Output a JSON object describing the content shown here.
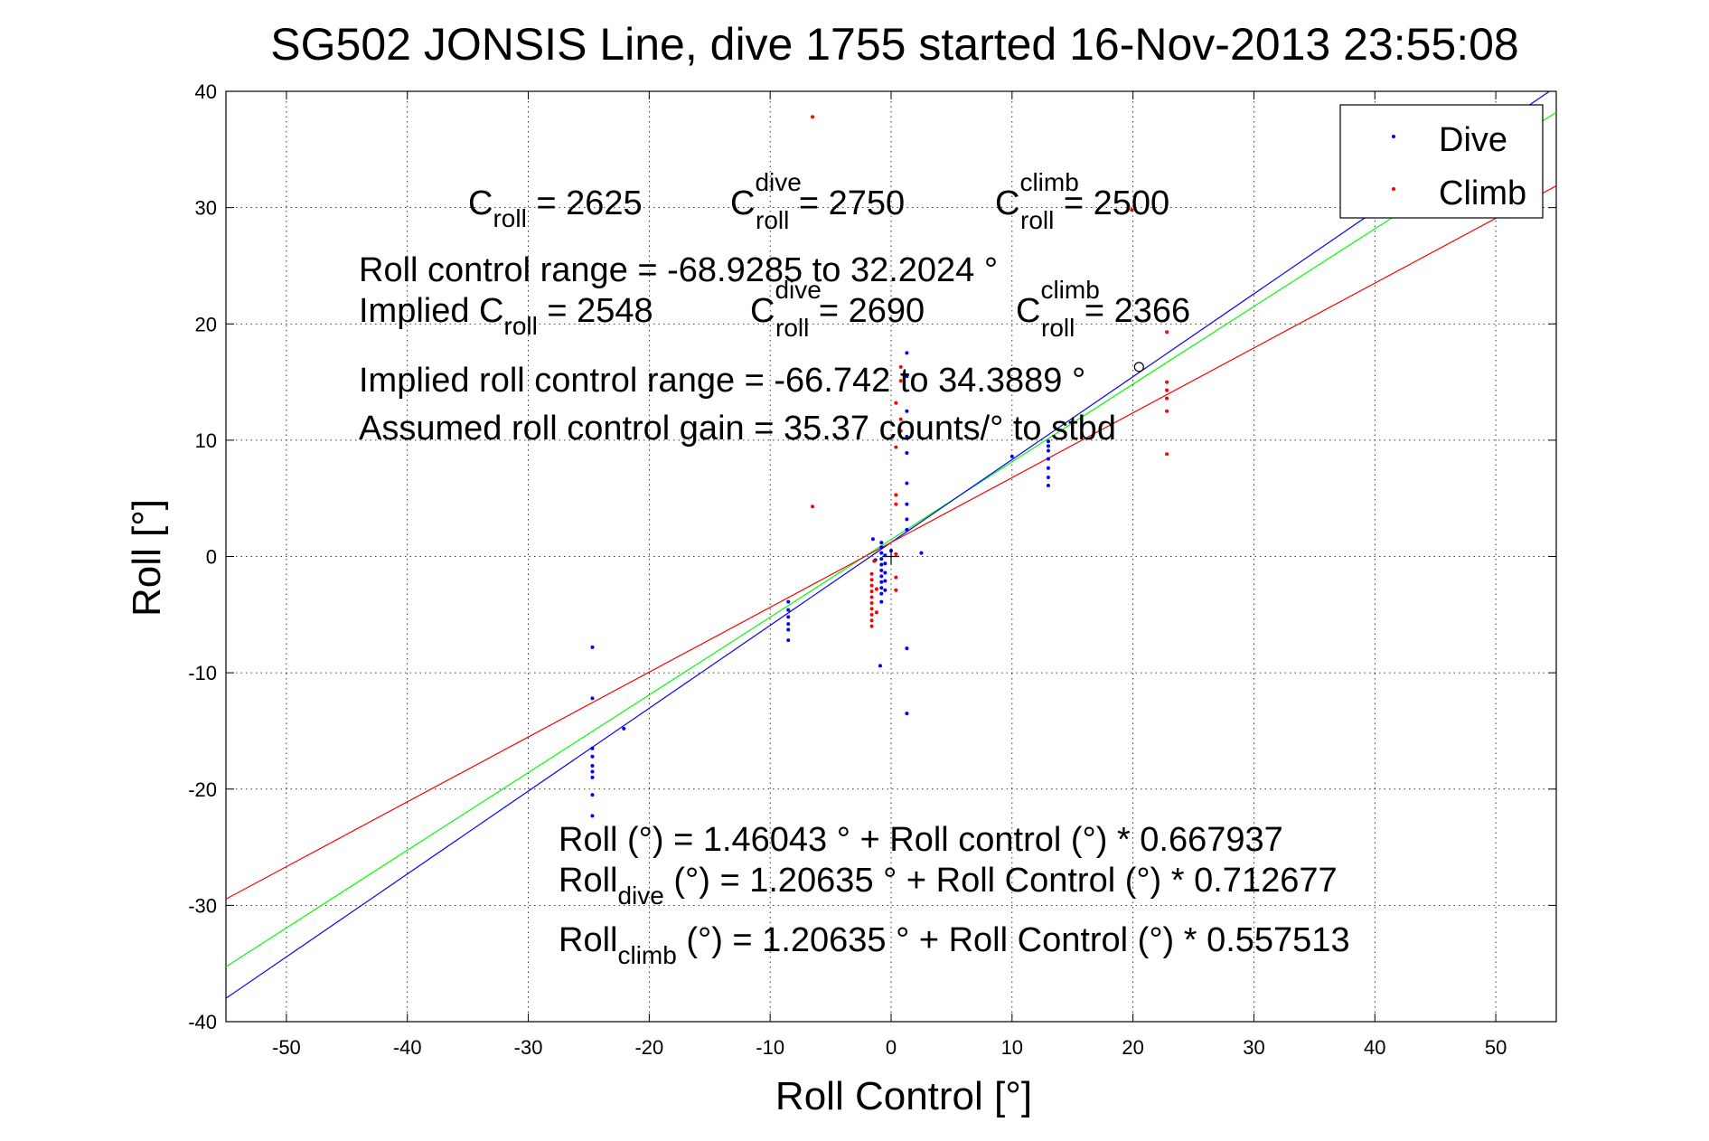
{
  "chart_data": {
    "type": "scatter",
    "title": "SG502 JONSIS Line, dive 1755 started 16-Nov-2013 23:55:08",
    "xlabel": "Roll Control [°]",
    "ylabel": "Roll [°]",
    "xlim": [
      -55,
      55
    ],
    "ylim": [
      -40,
      40
    ],
    "xticks": [
      -50,
      -40,
      -30,
      -20,
      -10,
      0,
      10,
      20,
      30,
      40,
      50
    ],
    "yticks": [
      -40,
      -30,
      -20,
      -10,
      0,
      10,
      20,
      30,
      40
    ],
    "grid": true,
    "legend_position": "top-right",
    "series": [
      {
        "name": "Dive",
        "color": "#0000ff",
        "points": [
          [
            -24.7,
            -7.8
          ],
          [
            -24.7,
            -12.2
          ],
          [
            -24.7,
            -16.5
          ],
          [
            -24.7,
            -17.2
          ],
          [
            -24.7,
            -18.0
          ],
          [
            -24.7,
            -18.5
          ],
          [
            -24.7,
            -19.0
          ],
          [
            -24.7,
            -20.5
          ],
          [
            -24.7,
            -22.3
          ],
          [
            -22.1,
            -14.8
          ],
          [
            -8.5,
            -3.9
          ],
          [
            -8.5,
            -4.6
          ],
          [
            -8.5,
            -5.2
          ],
          [
            -8.5,
            -5.8
          ],
          [
            -8.5,
            -6.3
          ],
          [
            -8.5,
            -7.2
          ],
          [
            -1.5,
            1.5
          ],
          [
            -1.3,
            -0.3
          ],
          [
            -0.8,
            1.2
          ],
          [
            -0.8,
            0.8
          ],
          [
            -0.8,
            0.3
          ],
          [
            -0.8,
            -0.2
          ],
          [
            -0.8,
            -0.7
          ],
          [
            -0.8,
            -1.2
          ],
          [
            -0.8,
            -1.7
          ],
          [
            -0.8,
            -2.2
          ],
          [
            -0.8,
            -2.7
          ],
          [
            -0.8,
            -3.2
          ],
          [
            -0.8,
            -3.9
          ],
          [
            -0.9,
            -9.4
          ],
          [
            -0.5,
            0.1
          ],
          [
            -0.5,
            -0.6
          ],
          [
            -0.5,
            -1.4
          ],
          [
            -0.5,
            -2.1
          ],
          [
            -0.5,
            -2.9
          ],
          [
            0.0,
            0.5
          ],
          [
            1.3,
            17.5
          ],
          [
            1.3,
            15.5
          ],
          [
            1.3,
            12.5
          ],
          [
            1.3,
            10.3
          ],
          [
            1.3,
            8.9
          ],
          [
            1.3,
            6.3
          ],
          [
            1.3,
            4.5
          ],
          [
            1.3,
            3.2
          ],
          [
            1.3,
            2.3
          ],
          [
            1.3,
            -7.9
          ],
          [
            1.3,
            -13.5
          ],
          [
            2.5,
            0.3
          ],
          [
            10.0,
            8.6
          ],
          [
            13.0,
            9.9
          ],
          [
            13.0,
            9.5
          ],
          [
            13.0,
            9.1
          ],
          [
            13.0,
            8.4
          ],
          [
            13.0,
            7.6
          ],
          [
            13.0,
            6.8
          ],
          [
            13.0,
            6.1
          ]
        ]
      },
      {
        "name": "Climb",
        "color": "#ff0000",
        "points": [
          [
            -6.5,
            37.8
          ],
          [
            -6.5,
            4.3
          ],
          [
            -1.6,
            -1.5
          ],
          [
            -1.6,
            -2.0
          ],
          [
            -1.6,
            -2.5
          ],
          [
            -1.6,
            -3.0
          ],
          [
            -1.6,
            -3.5
          ],
          [
            -1.6,
            -4.0
          ],
          [
            -1.6,
            -4.5
          ],
          [
            -1.6,
            -5.0
          ],
          [
            -1.6,
            -5.5
          ],
          [
            -1.6,
            -6.0
          ],
          [
            -1.4,
            -0.4
          ],
          [
            -1.2,
            -2.8
          ],
          [
            -1.2,
            -4.8
          ],
          [
            0.4,
            13.2
          ],
          [
            0.4,
            9.4
          ],
          [
            0.4,
            5.3
          ],
          [
            0.4,
            4.5
          ],
          [
            0.4,
            0.2
          ],
          [
            0.4,
            -1.8
          ],
          [
            0.4,
            -2.9
          ],
          [
            0.8,
            16.3
          ],
          [
            0.8,
            15.1
          ],
          [
            0.8,
            11.8
          ],
          [
            0.8,
            10.8
          ],
          [
            19.9,
            29.8
          ],
          [
            22.8,
            19.3
          ],
          [
            22.8,
            15.0
          ],
          [
            22.8,
            14.3
          ],
          [
            22.8,
            13.6
          ],
          [
            22.8,
            12.5
          ],
          [
            22.8,
            8.8
          ]
        ]
      }
    ],
    "fit_lines": [
      {
        "color": "#00ff00",
        "intercept": 1.46043,
        "slope": 0.667937
      },
      {
        "color": "#0000ff",
        "intercept": 1.20635,
        "slope": 0.712677
      },
      {
        "color": "#ff0000",
        "intercept": 1.20635,
        "slope": 0.557513
      }
    ],
    "origin_marker": {
      "x": 0,
      "y": 0
    },
    "small_circle_marker": {
      "x": 20.5,
      "y": 16.3
    }
  },
  "annotations": {
    "line1": {
      "croll_main": "C",
      "croll_sub": "roll",
      "croll_val": " = 2625",
      "cdive_main": "C",
      "cdive_sup": "dive",
      "cdive_sub": "roll",
      "cdive_val": " = 2750",
      "cclimb_main": "C",
      "cclimb_sup": "climb",
      "cclimb_sub": "roll",
      "cclimb_val": " = 2500"
    },
    "range": "Roll control range = -68.9285 to 32.2024 °",
    "implied": {
      "main": "Implied C",
      "sub": "roll",
      "val": " = 2548",
      "dive_main": "C",
      "dive_sup": "dive",
      "dive_sub": "roll",
      "dive_val": " = 2690",
      "climb_main": "C",
      "climb_sup": "climb",
      "climb_sub": "roll",
      "climb_val": " = 2366"
    },
    "implied_range": "Implied roll control range = -66.742 to 34.3889 °",
    "gain": "Assumed roll control gain = 35.37 counts/° to stbd",
    "eq_all": "Roll (°) = 1.46043 ° + Roll control (°) * 0.667937",
    "eq_dive": {
      "main": "Roll",
      "sub": "dive",
      "rest": " (°) = 1.20635 ° + Roll Control (°) * 0.712677"
    },
    "eq_climb": {
      "main": "Roll",
      "sub": "climb",
      "rest": " (°) = 1.20635 ° + Roll Control (°) * 0.557513"
    }
  }
}
